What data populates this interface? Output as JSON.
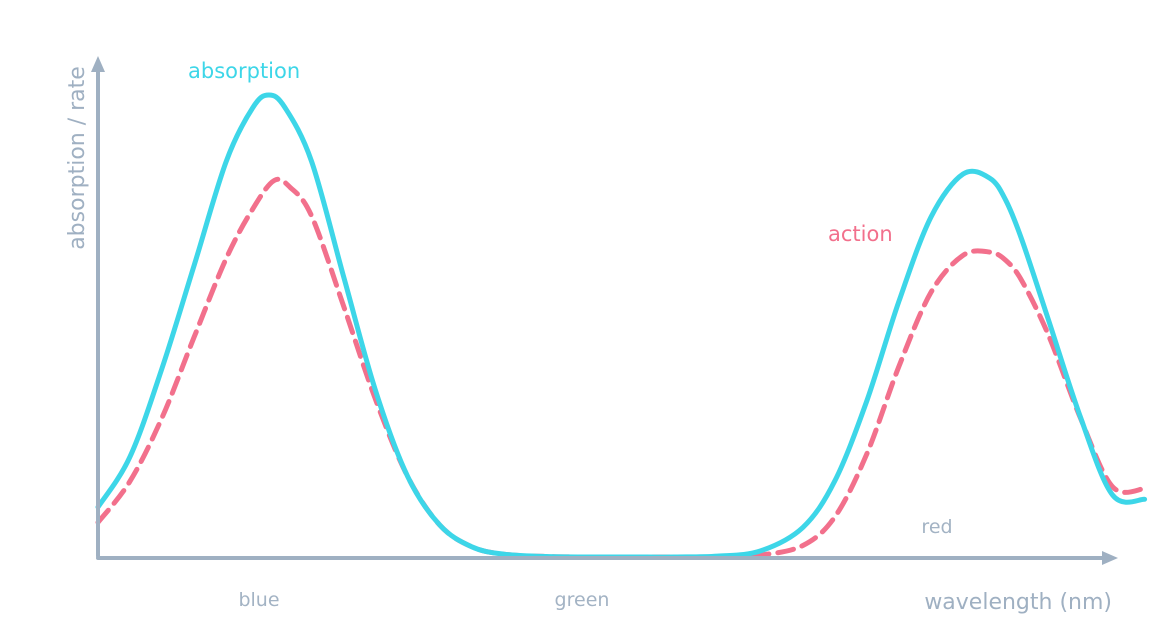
{
  "chart_data": {
    "type": "line",
    "title": "",
    "xlabel": "wavelength (nm)",
    "ylabel": "absorption / rate",
    "xlim": [
      0,
      10
    ],
    "ylim": [
      0,
      1.0
    ],
    "grid": false,
    "legend": "none",
    "x_ticks": [
      {
        "x": 1.6,
        "label": "blue"
      },
      {
        "x": 4.85,
        "label": "green"
      },
      {
        "x": 8.4,
        "label": "red"
      }
    ],
    "series": [
      {
        "name": "absorption",
        "color": "#3dd6e8",
        "style": "solid",
        "x": [
          0.0,
          0.3,
          0.6,
          0.9,
          1.2,
          1.45,
          1.6,
          1.75,
          2.0,
          2.3,
          2.6,
          2.9,
          3.2,
          3.5,
          3.8,
          4.2,
          4.6,
          5.0,
          5.4,
          5.8,
          6.2,
          6.6,
          6.9,
          7.2,
          7.5,
          7.8,
          8.1,
          8.35,
          8.5,
          8.65,
          8.9,
          9.2,
          9.5,
          9.8
        ],
        "y": [
          0.108,
          0.217,
          0.409,
          0.631,
          0.856,
          0.973,
          1.0,
          0.973,
          0.856,
          0.607,
          0.359,
          0.174,
          0.069,
          0.022,
          0.006,
          0.001,
          0.0,
          0.0,
          0.0,
          0.002,
          0.013,
          0.064,
          0.165,
          0.339,
          0.554,
          0.736,
          0.829,
          0.82,
          0.772,
          0.687,
          0.513,
          0.302,
          0.134,
          0.125
        ]
      },
      {
        "name": "action",
        "color": "#f2708c",
        "style": "dashed",
        "x": [
          0.0,
          0.3,
          0.6,
          0.9,
          1.2,
          1.45,
          1.65,
          1.8,
          2.0,
          2.3,
          2.6,
          2.9,
          3.2,
          3.5,
          3.8,
          4.2,
          4.6,
          5.0,
          5.4,
          5.8,
          6.2,
          6.6,
          6.9,
          7.2,
          7.5,
          7.8,
          8.1,
          8.35,
          8.5,
          8.65,
          8.9,
          9.2,
          9.5,
          9.8
        ],
        "y": [
          0.075,
          0.164,
          0.302,
          0.476,
          0.646,
          0.754,
          0.815,
          0.8,
          0.738,
          0.543,
          0.34,
          0.174,
          0.069,
          0.022,
          0.006,
          0.001,
          0.0,
          0.0,
          0.0,
          0.0,
          0.004,
          0.025,
          0.087,
          0.224,
          0.413,
          0.573,
          0.653,
          0.66,
          0.642,
          0.598,
          0.48,
          0.3,
          0.152,
          0.148
        ]
      }
    ],
    "annotations": [
      {
        "text": "absorption",
        "series": "absorption"
      },
      {
        "text": "action",
        "series": "action"
      }
    ]
  }
}
